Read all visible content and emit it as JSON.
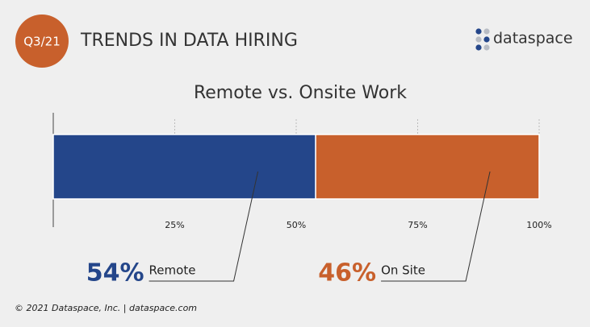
{
  "header": {
    "badge": "Q3/21",
    "title": "TRENDS IN DATA HIRING",
    "logo": "dataspace"
  },
  "chart_data": {
    "type": "bar",
    "stacked": true,
    "orientation": "horizontal",
    "title": "Remote vs. Onsite Work",
    "series": [
      {
        "name": "Remote",
        "color": "#24468a",
        "values": [
          54
        ],
        "value_labels": [
          "54%"
        ]
      },
      {
        "name": "On Site",
        "color": "#c8602c",
        "values": [
          46
        ],
        "value_labels": [
          "46%"
        ]
      }
    ],
    "xlim": [
      0,
      100
    ],
    "xticks": [
      {
        "value": 25,
        "label": "25%"
      },
      {
        "value": 50,
        "label": "50%"
      },
      {
        "value": 75,
        "label": "75%"
      },
      {
        "value": 100,
        "label": "100%"
      }
    ],
    "grid": true
  },
  "footer": {
    "text": "© 2021 Dataspace, Inc. |  dataspace.com"
  }
}
